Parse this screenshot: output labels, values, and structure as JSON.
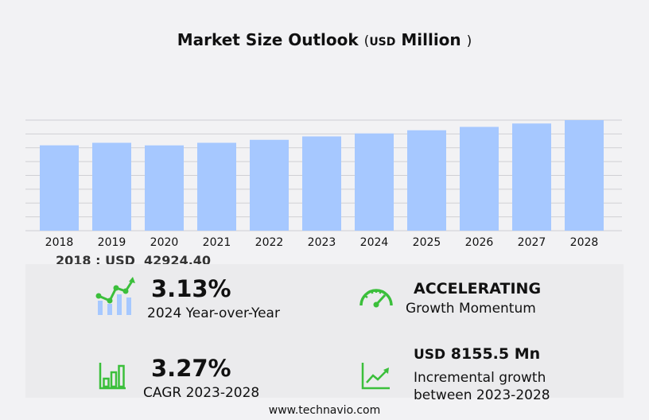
{
  "title": {
    "main": "Market Size Outlook",
    "open": "(",
    "unit": "USD",
    "scale": "Million",
    "close": ")"
  },
  "base": {
    "year": "2018",
    "sep": ":",
    "currency": "USD",
    "value": "42924.40"
  },
  "kpis": {
    "yoy": {
      "value": "3.13%",
      "label": "2024 Year-over-Year"
    },
    "momentum": {
      "value": "ACCELERATING",
      "label": "Growth Momentum"
    },
    "cagr": {
      "value": "3.27%",
      "label": "CAGR 2023-2028"
    },
    "incremental": {
      "currency": "USD",
      "value": "8155.5 Mn",
      "label_line1": "Incremental growth",
      "label_line2": "between 2023-2028"
    }
  },
  "footer": "www.technavio.com",
  "colors": {
    "bar": "#a6c8ff",
    "grid": "#cfcfd4",
    "icon_green": "#3bbf3b",
    "icon_blue": "#a6c8ff"
  },
  "icons": [
    "growth-chart-icon",
    "speedometer-icon",
    "bar-chart-icon",
    "trend-line-icon"
  ],
  "chart_data": {
    "type": "bar",
    "categories": [
      "2018",
      "2019",
      "2020",
      "2021",
      "2022",
      "2023",
      "2024",
      "2025",
      "2026",
      "2027",
      "2028"
    ],
    "values": [
      42924.4,
      44200,
      42900,
      44200,
      45700,
      47400,
      48900,
      50500,
      52200,
      53900,
      55600
    ],
    "ylim": [
      0,
      60000
    ],
    "grid": true
  }
}
